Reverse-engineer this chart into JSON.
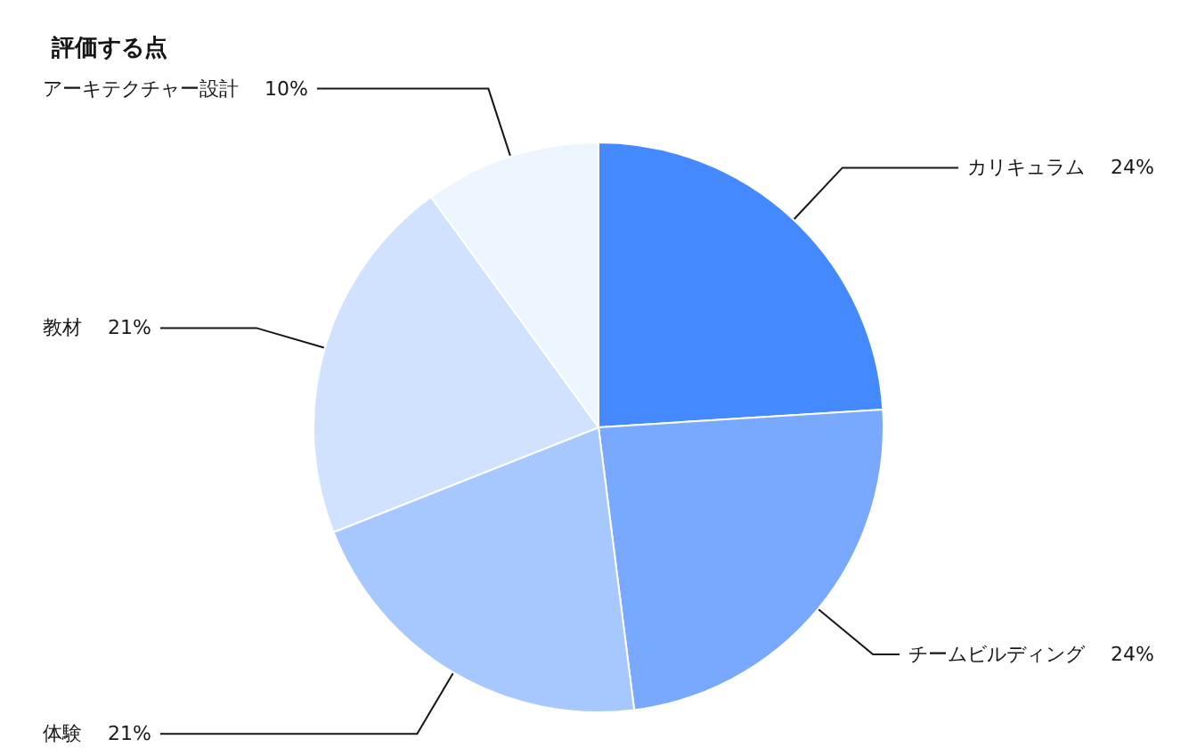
{
  "chart_data": {
    "type": "pie",
    "title": "評価する点",
    "categories": [
      "カリキュラム",
      "チームビルディング",
      "体験",
      "教材",
      "アーキテクチャー設計"
    ],
    "values": [
      24,
      24,
      21,
      21,
      10
    ],
    "value_labels": [
      "24%",
      "24%",
      "21%",
      "21%",
      "10%"
    ],
    "colors": [
      "#4589ff",
      "#78a9ff",
      "#a6c8ff",
      "#d0e2ff",
      "#edf5ff"
    ],
    "legend": false
  }
}
